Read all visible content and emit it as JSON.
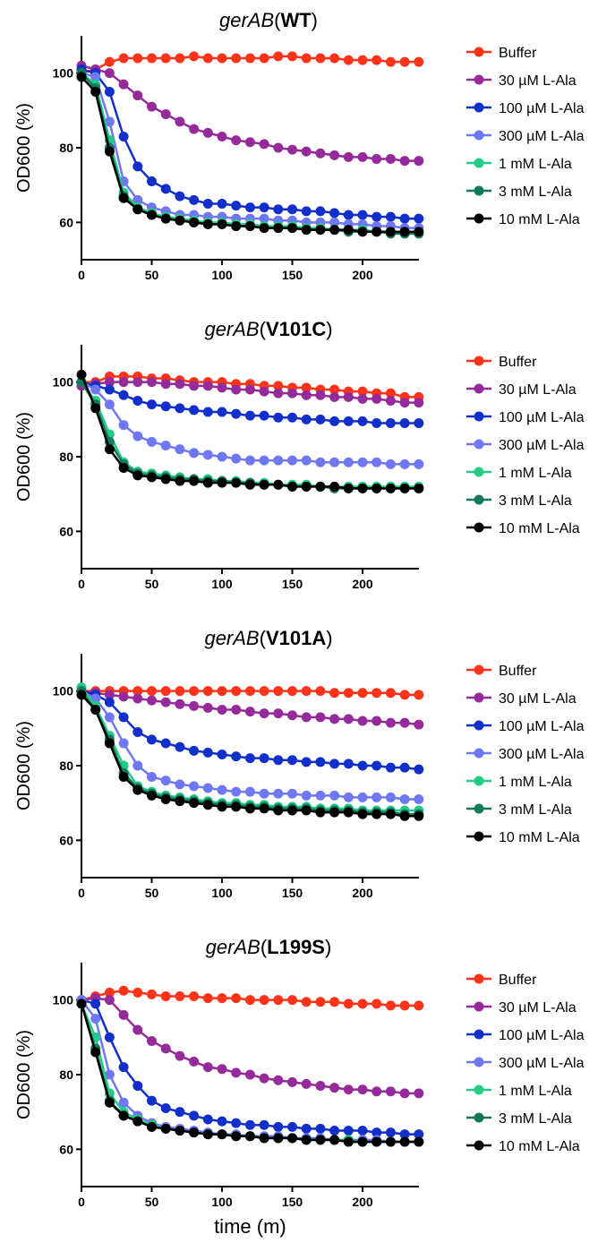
{
  "series_colors": {
    "Buffer": "#ff3319",
    "30 µM L-Ala": "#952a9a",
    "100 µM L-Ala": "#1230c9",
    "300 µM L-Ala": "#6f78f2",
    "1 mM L-Ala": "#22cc86",
    "3 mM L-Ala": "#14785a",
    "10 mM L-Ala": "#000000"
  },
  "xlabel": "time (m)",
  "chart_data": [
    {
      "type": "line",
      "title_italic": "gerAB",
      "title_bold": "WT",
      "title_open": "(",
      "title_close": ")",
      "ylabel": "OD600 (%)",
      "xlim": [
        0,
        240
      ],
      "ylim": [
        50,
        110
      ],
      "xticks": [
        "0",
        "50",
        "100",
        "150",
        "200"
      ],
      "yticks": [
        "60",
        "80",
        "100"
      ],
      "x": [
        0,
        10,
        20,
        30,
        40,
        50,
        60,
        70,
        80,
        90,
        100,
        110,
        120,
        130,
        140,
        150,
        160,
        170,
        180,
        190,
        200,
        210,
        220,
        230,
        240
      ],
      "series": [
        {
          "name": "Buffer",
          "values": [
            100,
            101,
            103,
            104,
            104,
            104,
            104,
            104,
            104.5,
            104,
            104,
            104,
            104,
            104,
            104.5,
            104.5,
            104,
            104,
            104,
            103.5,
            103.5,
            103.5,
            103,
            103,
            103
          ]
        },
        {
          "name": "30 µM L-Ala",
          "values": [
            102,
            101,
            100,
            97,
            94,
            91,
            89,
            87,
            85,
            84,
            83,
            82,
            81.5,
            81,
            80,
            79.5,
            79,
            78.5,
            78,
            77.5,
            77.5,
            77,
            77,
            76.5,
            76.5
          ]
        },
        {
          "name": "100 µM L-Ala",
          "values": [
            101,
            100,
            95,
            83,
            75,
            71,
            69,
            67,
            66,
            65,
            65,
            64.5,
            64,
            64,
            63.5,
            63.5,
            63,
            63,
            62.5,
            62,
            62,
            61.5,
            61.5,
            61,
            61
          ]
        },
        {
          "name": "300 µM L-Ala",
          "values": [
            100,
            99,
            87,
            71,
            66,
            64,
            63,
            62,
            62,
            61.5,
            61.5,
            61,
            61,
            61,
            60.5,
            60.5,
            60,
            60,
            60,
            59.5,
            59.5,
            59,
            59,
            58.5,
            58.5
          ]
        },
        {
          "name": "1 mM L-Ala",
          "values": [
            100,
            97,
            82,
            68,
            64,
            62.5,
            61.5,
            61,
            60.5,
            60,
            60,
            59.5,
            59.5,
            59,
            59,
            59,
            58.5,
            58.5,
            58,
            58,
            58,
            57.5,
            57.5,
            57,
            57
          ]
        },
        {
          "name": "3 mM L-Ala",
          "values": [
            100,
            96,
            80,
            67,
            63.5,
            62,
            61,
            60.5,
            60,
            59.5,
            59.5,
            59,
            59,
            58.5,
            58.5,
            58.5,
            58,
            58,
            58,
            57.5,
            57.5,
            57.5,
            57,
            57,
            57
          ]
        },
        {
          "name": "10 mM L-Ala",
          "values": [
            99,
            95,
            79,
            66.5,
            63.5,
            62,
            61,
            60.5,
            60,
            59.5,
            59.5,
            59,
            59,
            58.5,
            58.5,
            58.5,
            58,
            58,
            58,
            58,
            57.5,
            57.5,
            57.5,
            57.5,
            57.5
          ]
        }
      ]
    },
    {
      "type": "line",
      "title_italic": "gerAB",
      "title_bold": "V101C",
      "title_open": "(",
      "title_close": ")",
      "ylabel": "OD600 (%)",
      "xlim": [
        0,
        240
      ],
      "ylim": [
        50,
        110
      ],
      "xticks": [
        "0",
        "50",
        "100",
        "150",
        "200"
      ],
      "yticks": [
        "60",
        "80",
        "100"
      ],
      "x": [
        0,
        10,
        20,
        30,
        40,
        50,
        60,
        70,
        80,
        90,
        100,
        110,
        120,
        130,
        140,
        150,
        160,
        170,
        180,
        190,
        200,
        210,
        220,
        230,
        240
      ],
      "series": [
        {
          "name": "Buffer",
          "values": [
            100,
            100,
            101.5,
            101.5,
            101.5,
            101,
            101,
            100.5,
            100,
            100,
            100,
            99.5,
            99.5,
            99,
            99,
            98.5,
            98.5,
            98,
            98,
            97.5,
            97.5,
            97,
            97,
            96,
            96
          ]
        },
        {
          "name": "30 µM L-Ala",
          "values": [
            99,
            99.5,
            100,
            100,
            100,
            100,
            99.5,
            99.5,
            99,
            99,
            98.5,
            98,
            98,
            97.5,
            97,
            97,
            96.5,
            96.5,
            96,
            96,
            95.5,
            95.5,
            95,
            94.5,
            94.5
          ]
        },
        {
          "name": "100 µM L-Ala",
          "values": [
            100,
            99,
            98,
            96.5,
            95,
            94,
            93.5,
            93,
            92.5,
            92,
            92,
            91.5,
            91,
            91,
            90.5,
            90.5,
            90,
            90,
            89.5,
            89.5,
            89.5,
            89,
            89,
            89,
            89
          ]
        },
        {
          "name": "300 µM L-Ala",
          "values": [
            100,
            98,
            94,
            88.5,
            85.5,
            84,
            83,
            82,
            81,
            80.5,
            80,
            79.5,
            79,
            79,
            79,
            79,
            79,
            78.5,
            78.5,
            78.5,
            78.5,
            78.5,
            78,
            78,
            78
          ]
        },
        {
          "name": "1 mM L-Ala",
          "values": [
            100,
            95,
            86,
            78.5,
            76,
            75.5,
            75,
            74.5,
            74,
            74,
            73.5,
            73.5,
            73,
            73,
            72.5,
            72.5,
            72.5,
            72,
            72,
            72,
            72,
            72,
            72,
            72,
            72
          ]
        },
        {
          "name": "3 mM L-Ala",
          "values": [
            100,
            94,
            84,
            78,
            75.5,
            75,
            74.5,
            74,
            74,
            73.5,
            73.5,
            73,
            73,
            72.5,
            72.5,
            72,
            72,
            72,
            71.5,
            71.5,
            71.5,
            71.5,
            71.5,
            71.5,
            71.5
          ]
        },
        {
          "name": "10 mM L-Ala",
          "values": [
            102,
            93,
            82,
            77,
            75,
            74.5,
            74,
            73.5,
            73.5,
            73,
            73,
            73,
            72.5,
            72.5,
            72.5,
            72,
            72,
            72,
            72,
            71.5,
            71.5,
            71.5,
            71.5,
            71.5,
            71.5
          ]
        }
      ]
    },
    {
      "type": "line",
      "title_italic": "gerAB",
      "title_bold": "V101A",
      "title_open": "(",
      "title_close": ")",
      "ylabel": "OD600 (%)",
      "xlim": [
        0,
        240
      ],
      "ylim": [
        50,
        110
      ],
      "xticks": [
        "0",
        "50",
        "100",
        "150",
        "200"
      ],
      "yticks": [
        "60",
        "80",
        "100"
      ],
      "x": [
        0,
        10,
        20,
        30,
        40,
        50,
        60,
        70,
        80,
        90,
        100,
        110,
        120,
        130,
        140,
        150,
        160,
        170,
        180,
        190,
        200,
        210,
        220,
        230,
        240
      ],
      "series": [
        {
          "name": "Buffer",
          "values": [
            100,
            100,
            100,
            100,
            100,
            100,
            100,
            100,
            100,
            100,
            100,
            100,
            100,
            100,
            100,
            100,
            100,
            100,
            99.5,
            99.5,
            99.5,
            99.5,
            99.5,
            99,
            99
          ]
        },
        {
          "name": "30 µM L-Ala",
          "values": [
            100,
            99.5,
            99,
            98.5,
            98,
            97.5,
            97,
            96.5,
            96,
            95.5,
            95,
            95,
            94.5,
            94,
            94,
            93.5,
            93,
            93,
            92.5,
            92.5,
            92,
            92,
            91.5,
            91.5,
            91
          ]
        },
        {
          "name": "100 µM L-Ala",
          "values": [
            100,
            99,
            97,
            93,
            89,
            87,
            86,
            85,
            84,
            83.5,
            83,
            82.5,
            82,
            82,
            81.5,
            81.5,
            81,
            81,
            80.5,
            80.5,
            80,
            80,
            79.5,
            79.5,
            79
          ]
        },
        {
          "name": "300 µM L-Ala",
          "values": [
            100,
            98,
            93,
            86,
            80,
            77,
            76,
            75,
            74.5,
            74,
            73.5,
            73,
            73,
            72.5,
            72.5,
            72.5,
            72,
            72,
            72,
            71.5,
            71.5,
            71.5,
            71.5,
            71,
            71
          ]
        },
        {
          "name": "1 mM L-Ala",
          "values": [
            101,
            96,
            88,
            80,
            74.5,
            73,
            72,
            71.5,
            71,
            70.5,
            70,
            70,
            69.5,
            69.5,
            69,
            69,
            69,
            68.5,
            68.5,
            68.5,
            68,
            68,
            68,
            68,
            68
          ]
        },
        {
          "name": "3 mM L-Ala",
          "values": [
            100,
            95,
            87,
            78,
            74,
            72.5,
            71.5,
            71,
            70.5,
            70,
            69.5,
            69.5,
            69,
            69,
            68.5,
            68.5,
            68.5,
            68,
            68,
            68,
            67.5,
            67.5,
            67.5,
            67,
            67
          ]
        },
        {
          "name": "10 mM L-Ala",
          "values": [
            99,
            95,
            86,
            77,
            73.5,
            72,
            71,
            70.5,
            70,
            69.5,
            69,
            69,
            68.5,
            68.5,
            68,
            68,
            68,
            67.5,
            67.5,
            67.5,
            67,
            67,
            67,
            66.5,
            66.5
          ]
        }
      ]
    },
    {
      "type": "line",
      "title_italic": "gerAB",
      "title_bold": "L199S",
      "title_open": "(",
      "title_close": ")",
      "ylabel": "OD600 (%)",
      "xlabel": "time (m)",
      "xlim": [
        0,
        240
      ],
      "ylim": [
        50,
        110
      ],
      "xticks": [
        "0",
        "50",
        "100",
        "150",
        "200"
      ],
      "yticks": [
        "60",
        "80",
        "100"
      ],
      "x": [
        0,
        10,
        20,
        30,
        40,
        50,
        60,
        70,
        80,
        90,
        100,
        110,
        120,
        130,
        140,
        150,
        160,
        170,
        180,
        190,
        200,
        210,
        220,
        230,
        240
      ],
      "series": [
        {
          "name": "Buffer",
          "values": [
            100,
            101,
            102,
            102.5,
            102,
            101.5,
            101,
            101,
            101,
            100.5,
            100.5,
            100.5,
            100,
            100,
            100,
            100,
            99.5,
            99.5,
            99.5,
            99,
            99,
            99,
            98.5,
            98.5,
            98.5
          ]
        },
        {
          "name": "30 µM L-Ala",
          "values": [
            100,
            100.5,
            100,
            96,
            92,
            89,
            87,
            85,
            83.5,
            82,
            81.5,
            80.5,
            80,
            79,
            78.5,
            78,
            77.5,
            77,
            76.5,
            76,
            76,
            75.5,
            75.5,
            75,
            75
          ]
        },
        {
          "name": "100 µM L-Ala",
          "values": [
            100,
            99,
            90,
            82,
            77,
            73,
            71,
            70,
            69,
            68,
            67.5,
            67,
            66.5,
            66.5,
            66,
            66,
            65.5,
            65.5,
            65,
            65,
            65,
            64.5,
            64.5,
            64,
            64
          ]
        },
        {
          "name": "300 µM L-Ala",
          "values": [
            100,
            95,
            80,
            72.5,
            69,
            67,
            66,
            65.5,
            65,
            64.5,
            64,
            64,
            63.5,
            63.5,
            63.5,
            63,
            63,
            63,
            62.5,
            62.5,
            62.5,
            62.5,
            62,
            62,
            62
          ]
        },
        {
          "name": "1 mM L-Ala",
          "values": [
            99,
            90,
            75,
            70,
            68,
            66.5,
            65.5,
            65,
            64.5,
            64,
            64,
            63.5,
            63.5,
            63,
            63,
            63,
            62.5,
            62.5,
            62.5,
            62.5,
            62,
            62,
            62,
            62,
            62
          ]
        },
        {
          "name": "3 mM L-Ala",
          "values": [
            99,
            87,
            73,
            69,
            67.5,
            66,
            65.5,
            65,
            64.5,
            64,
            64,
            63.5,
            63.5,
            63,
            63,
            63,
            62.5,
            62.5,
            62.5,
            62,
            62,
            62,
            62,
            62,
            62
          ]
        },
        {
          "name": "10 mM L-Ala",
          "values": [
            99,
            86,
            72.5,
            69,
            67.5,
            66,
            65.5,
            65,
            64.5,
            64,
            64,
            63.5,
            63.5,
            63,
            63,
            63,
            62.5,
            62.5,
            62.5,
            62,
            62,
            62,
            62,
            62,
            62
          ]
        }
      ]
    }
  ]
}
